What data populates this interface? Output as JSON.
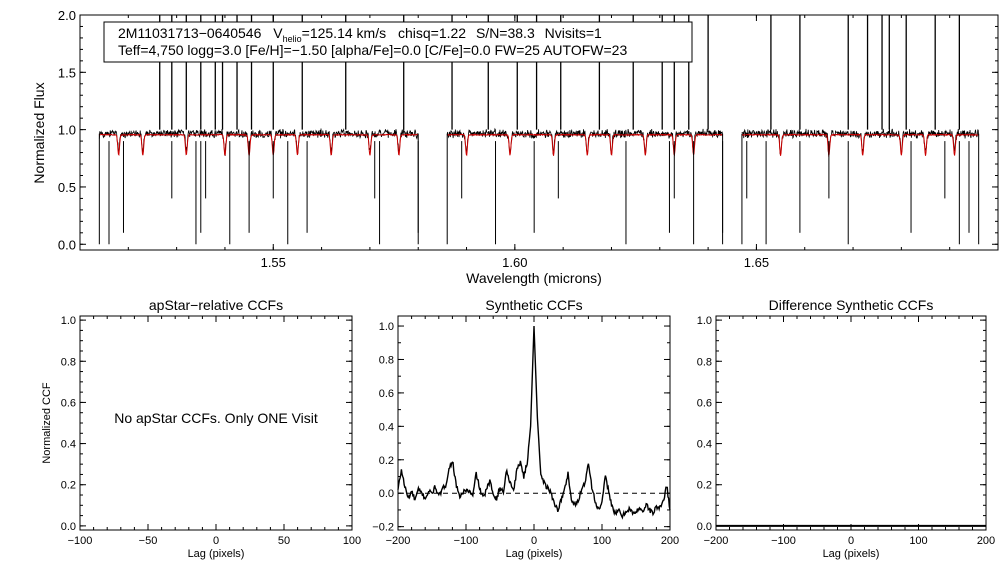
{
  "chart_data": [
    {
      "id": "spectrum",
      "type": "line",
      "xlabel": "Wavelength (microns)",
      "ylabel": "Normalized Flux",
      "xlim": [
        1.51,
        1.7
      ],
      "ylim": [
        -0.05,
        2.0
      ],
      "x_ticks": [
        {
          "v": 1.55,
          "label": "1.55"
        },
        {
          "v": 1.6,
          "label": "1.60"
        },
        {
          "v": 1.65,
          "label": "1.65"
        }
      ],
      "y_ticks": [
        {
          "v": 0.0,
          "label": "0.0"
        },
        {
          "v": 0.5,
          "label": "0.5"
        },
        {
          "v": 1.0,
          "label": "1.0"
        },
        {
          "v": 1.5,
          "label": "1.5"
        },
        {
          "v": 2.0,
          "label": "2.0"
        }
      ],
      "detector_ranges": [
        [
          1.514,
          1.58
        ],
        [
          1.586,
          1.643
        ],
        [
          1.647,
          1.696
        ]
      ],
      "series": [
        {
          "color": "#000000",
          "continuum": 0.965,
          "noise": 0.03
        },
        {
          "color": "#cc0000",
          "continuum": 0.955,
          "noise": 0.008
        }
      ],
      "emission_spikes": [
        1.5265,
        1.529,
        1.532,
        1.535,
        1.538,
        1.5395,
        1.5425,
        1.5455,
        1.55,
        1.556,
        1.565,
        1.577,
        1.587,
        1.5945,
        1.6005,
        1.6045,
        1.6095,
        1.6175,
        1.6245,
        1.6305,
        1.633,
        1.636,
        1.64,
        1.653,
        1.659,
        1.669,
        1.673,
        1.676,
        1.6775,
        1.681,
        1.687,
        1.692
      ],
      "absorption_dips": [
        1.516,
        1.519,
        1.529,
        1.534,
        1.535,
        1.536,
        1.541,
        1.545,
        1.55,
        1.553,
        1.557,
        1.571,
        1.572,
        1.58,
        1.589,
        1.596,
        1.604,
        1.609,
        1.623,
        1.632,
        1.633,
        1.637,
        1.643,
        1.648,
        1.652,
        1.659,
        1.665,
        1.669,
        1.682,
        1.689,
        1.692,
        1.694
      ],
      "model_lines": [
        1.518,
        1.523,
        1.532,
        1.54,
        1.545,
        1.55,
        1.555,
        1.562,
        1.57,
        1.576,
        1.59,
        1.599,
        1.608,
        1.615,
        1.62,
        1.627,
        1.633,
        1.637,
        1.655,
        1.665,
        1.672,
        1.68,
        1.685,
        1.691
      ]
    },
    {
      "id": "apstar-ccf",
      "type": "line",
      "title": "apStar−relative CCFs",
      "xlabel": "Lag (pixels)",
      "ylabel": "Normalized CCF",
      "xlim": [
        -100,
        100
      ],
      "ylim": [
        -0.02,
        1.02
      ],
      "x_ticks": [
        {
          "v": -100,
          "label": "−100"
        },
        {
          "v": -50,
          "label": "−50"
        },
        {
          "v": 0,
          "label": "0"
        },
        {
          "v": 50,
          "label": "50"
        },
        {
          "v": 100,
          "label": "100"
        }
      ],
      "y_ticks": [
        {
          "v": 0.0,
          "label": "0.0"
        },
        {
          "v": 0.2,
          "label": "0.2"
        },
        {
          "v": 0.4,
          "label": "0.4"
        },
        {
          "v": 0.6,
          "label": "0.6"
        },
        {
          "v": 0.8,
          "label": "0.8"
        },
        {
          "v": 1.0,
          "label": "1.0"
        }
      ],
      "note": "No apStar CCFs.  Only ONE Visit",
      "series": []
    },
    {
      "id": "synthetic-ccf",
      "type": "line",
      "title": "Synthetic CCFs",
      "xlabel": "Lag (pixels)",
      "xlim": [
        -200,
        200
      ],
      "ylim": [
        -0.22,
        1.06
      ],
      "x_ticks": [
        {
          "v": -200,
          "label": "−200"
        },
        {
          "v": -100,
          "label": "−100"
        },
        {
          "v": 0,
          "label": "0"
        },
        {
          "v": 100,
          "label": "100"
        },
        {
          "v": 200,
          "label": "200"
        }
      ],
      "y_ticks": [
        {
          "v": -0.2,
          "label": "−0.2"
        },
        {
          "v": 0.0,
          "label": "0.0"
        },
        {
          "v": 0.2,
          "label": "0.2"
        },
        {
          "v": 0.4,
          "label": "0.4"
        },
        {
          "v": 0.6,
          "label": "0.6"
        },
        {
          "v": 0.8,
          "label": "0.8"
        },
        {
          "v": 1.0,
          "label": "1.0"
        }
      ],
      "zero_line": 0.0,
      "series": [
        {
          "x": [
            -200,
            -195,
            -190,
            -185,
            -180,
            -175,
            -170,
            -165,
            -160,
            -155,
            -150,
            -145,
            -140,
            -135,
            -130,
            -125,
            -120,
            -115,
            -110,
            -105,
            -100,
            -95,
            -90,
            -85,
            -80,
            -75,
            -70,
            -65,
            -60,
            -55,
            -50,
            -45,
            -40,
            -35,
            -30,
            -25,
            -20,
            -15,
            -10,
            -5,
            0,
            5,
            10,
            15,
            20,
            25,
            30,
            35,
            40,
            45,
            50,
            55,
            60,
            65,
            70,
            75,
            80,
            85,
            90,
            95,
            100,
            105,
            110,
            115,
            120,
            125,
            130,
            135,
            140,
            145,
            150,
            155,
            160,
            165,
            170,
            175,
            180,
            185,
            190,
            195,
            200
          ],
          "y": [
            0.02,
            0.14,
            0.04,
            -0.03,
            0.01,
            -0.04,
            0.02,
            0.0,
            -0.03,
            0.01,
            0.0,
            0.04,
            -0.02,
            0.02,
            0.05,
            0.14,
            0.2,
            0.06,
            -0.02,
            0.0,
            0.02,
            0.01,
            -0.02,
            0.12,
            0.03,
            -0.03,
            0.02,
            0.07,
            0.0,
            -0.03,
            0.03,
            0.01,
            0.14,
            0.06,
            0.02,
            0.14,
            0.19,
            0.1,
            0.18,
            0.4,
            1.0,
            0.45,
            0.12,
            0.06,
            0.03,
            0.0,
            -0.06,
            -0.1,
            -0.04,
            0.02,
            0.12,
            -0.04,
            -0.07,
            -0.05,
            0.03,
            0.06,
            0.19,
            0.04,
            -0.05,
            -0.1,
            -0.06,
            0.1,
            0.01,
            -0.08,
            -0.13,
            -0.1,
            -0.14,
            -0.11,
            -0.09,
            -0.12,
            -0.12,
            -0.08,
            -0.11,
            -0.07,
            -0.1,
            -0.12,
            -0.08,
            -0.09,
            -0.05,
            0.05,
            -0.1
          ]
        }
      ]
    },
    {
      "id": "difference-ccf",
      "type": "line",
      "title": "Difference Synthetic CCFs",
      "xlabel": "Lag (pixels)",
      "xlim": [
        -200,
        200
      ],
      "ylim": [
        -0.02,
        1.02
      ],
      "x_ticks": [
        {
          "v": -200,
          "label": "−200"
        },
        {
          "v": -100,
          "label": "−100"
        },
        {
          "v": 0,
          "label": "0"
        },
        {
          "v": 100,
          "label": "100"
        },
        {
          "v": 200,
          "label": "200"
        }
      ],
      "y_ticks": [
        {
          "v": 0.0,
          "label": "0.0"
        },
        {
          "v": 0.2,
          "label": "0.2"
        },
        {
          "v": 0.4,
          "label": "0.4"
        },
        {
          "v": 0.6,
          "label": "0.6"
        },
        {
          "v": 0.8,
          "label": "0.8"
        },
        {
          "v": 1.0,
          "label": "1.0"
        }
      ],
      "series": [
        {
          "x": [
            -200,
            200
          ],
          "y": [
            0.0,
            0.0
          ]
        }
      ]
    }
  ],
  "legend": {
    "star_id": "2M11031713−0640546",
    "vhelio_prefix": "V",
    "vhelio_sub": "helio",
    "vhelio_value": "=125.14 km/s",
    "chisq": "chisq=1.22",
    "snr": "S/N=38.3",
    "nvisits": "Nvisits=1",
    "line2": "Teff=4,750 logg=3.0 [Fe/H]=−1.50 [alpha/Fe]=0.0 [C/Fe]=0.0 FW=25 AUTOFW=23"
  }
}
